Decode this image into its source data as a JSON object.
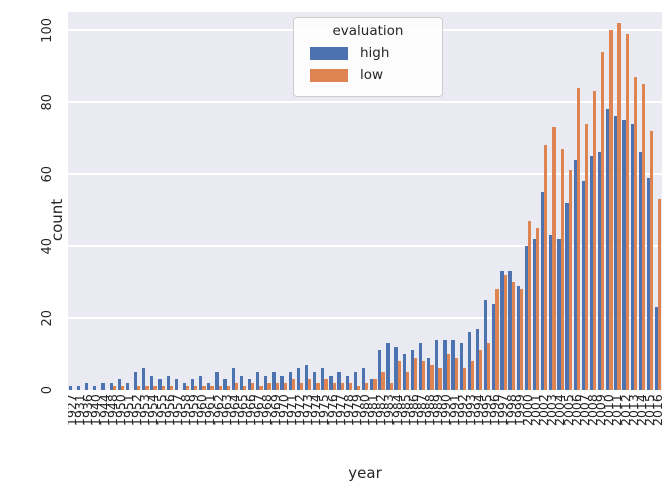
{
  "chart_data": {
    "type": "bar",
    "title": "",
    "xlabel": "year",
    "ylabel": "count",
    "ylim": [
      0,
      105
    ],
    "yticks": [
      0,
      20,
      40,
      60,
      80,
      100
    ],
    "grid": true,
    "background": "#eaeaf2",
    "gridline_color": "#ffffff",
    "legend": {
      "title": "evaluation",
      "position": "upper center",
      "entries": [
        {
          "label": "high",
          "color": "#4c72b0"
        },
        {
          "label": "low",
          "color": "#dd8452"
        }
      ]
    },
    "categories": [
      "1927",
      "1931",
      "1936",
      "1940",
      "1944",
      "1948",
      "1950",
      "1951",
      "1952",
      "1953",
      "1954",
      "1955",
      "1956",
      "1957",
      "1958",
      "1959",
      "1960",
      "1961",
      "1962",
      "1963",
      "1964",
      "1965",
      "1966",
      "1967",
      "1968",
      "1969",
      "1970",
      "1971",
      "1972",
      "1973",
      "1974",
      "1975",
      "1976",
      "1977",
      "1978",
      "1979",
      "1980",
      "1981",
      "1982",
      "1983",
      "1984",
      "1985",
      "1986",
      "1987",
      "1988",
      "1989",
      "1990",
      "1991",
      "1992",
      "1993",
      "1994",
      "1995",
      "1996",
      "1997",
      "1998",
      "1999",
      "2000",
      "2001",
      "2002",
      "2003",
      "2004",
      "2005",
      "2006",
      "2007",
      "2008",
      "2009",
      "2010",
      "2011",
      "2012",
      "2013",
      "2014",
      "2015",
      "2016"
    ],
    "series": [
      {
        "name": "high",
        "color": "#4c72b0",
        "values": [
          1,
          1,
          2,
          1,
          2,
          2,
          3,
          2,
          5,
          6,
          4,
          3,
          4,
          3,
          2,
          3,
          4,
          2,
          5,
          3,
          6,
          4,
          3,
          5,
          4,
          5,
          4,
          5,
          6,
          7,
          5,
          6,
          4,
          5,
          4,
          5,
          6,
          3,
          11,
          13,
          12,
          10,
          11,
          13,
          9,
          14,
          14,
          14,
          13,
          16,
          17,
          25,
          24,
          33,
          33,
          29,
          40,
          42,
          55,
          43,
          42,
          52,
          64,
          58,
          65,
          66,
          78,
          76,
          75,
          74,
          66,
          59,
          23
        ]
      },
      {
        "name": "low",
        "color": "#dd8452",
        "values": [
          0,
          0,
          0,
          0,
          0,
          1,
          1,
          0,
          1,
          1,
          1,
          1,
          1,
          0,
          1,
          1,
          1,
          1,
          1,
          1,
          2,
          1,
          2,
          1,
          2,
          2,
          2,
          3,
          2,
          3,
          2,
          3,
          2,
          2,
          2,
          1,
          2,
          3,
          5,
          2,
          8,
          5,
          9,
          8,
          7,
          6,
          10,
          9,
          6,
          8,
          11,
          13,
          28,
          32,
          30,
          28,
          47,
          45,
          68,
          73,
          67,
          61,
          84,
          74,
          83,
          94,
          100,
          102,
          99,
          87,
          85,
          72,
          53
        ]
      }
    ]
  }
}
